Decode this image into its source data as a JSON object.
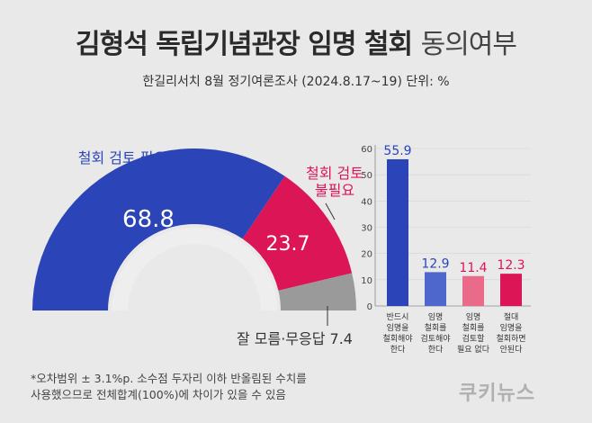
{
  "header": {
    "title_main": "김형석 독립기념관장 임명 철회",
    "title_light": "동의여부",
    "subtitle": "한길리서치 8월 정기여론조사 (2024.8.17~19) 단위: %"
  },
  "footnote": {
    "line1": "*오차범위 ± 3.1%p. 소수점 두자리 이하 반올림된 수치를",
    "line2": "사용했으므로 전체합계(100%)에 차이가 있을 수 있음"
  },
  "brand": "쿠키뉴스",
  "chart_data": [
    {
      "type": "pie",
      "style": "semi-donut",
      "slices": [
        {
          "label": "철회 검토 필요",
          "value": 68.8,
          "color": "#2b44b8"
        },
        {
          "label": "철회 검토 불필요",
          "value": 23.7,
          "color": "#dc1556"
        },
        {
          "label": "잘 모름·무응답",
          "value": 7.4,
          "color": "#9a9a9a"
        }
      ]
    },
    {
      "type": "bar",
      "categories": [
        [
          "반드시",
          "임명을",
          "철회해야",
          "한다"
        ],
        [
          "임명",
          "철회를",
          "검토해야",
          "한다"
        ],
        [
          "임명",
          "철회를",
          "검토할",
          "필요 없다"
        ],
        [
          "절대",
          "임명을",
          "철회하면",
          "안된다"
        ]
      ],
      "values": [
        55.9,
        12.9,
        11.4,
        12.3
      ],
      "colors": [
        "#2b44b8",
        "#4e67cc",
        "#ea6a8a",
        "#dc1556"
      ],
      "label_colors": [
        "#2b44b8",
        "#2b44b8",
        "#dc1556",
        "#dc1556"
      ],
      "yticks": [
        0,
        10,
        20,
        30,
        40,
        50,
        60
      ],
      "ylim": [
        0,
        60
      ]
    }
  ]
}
